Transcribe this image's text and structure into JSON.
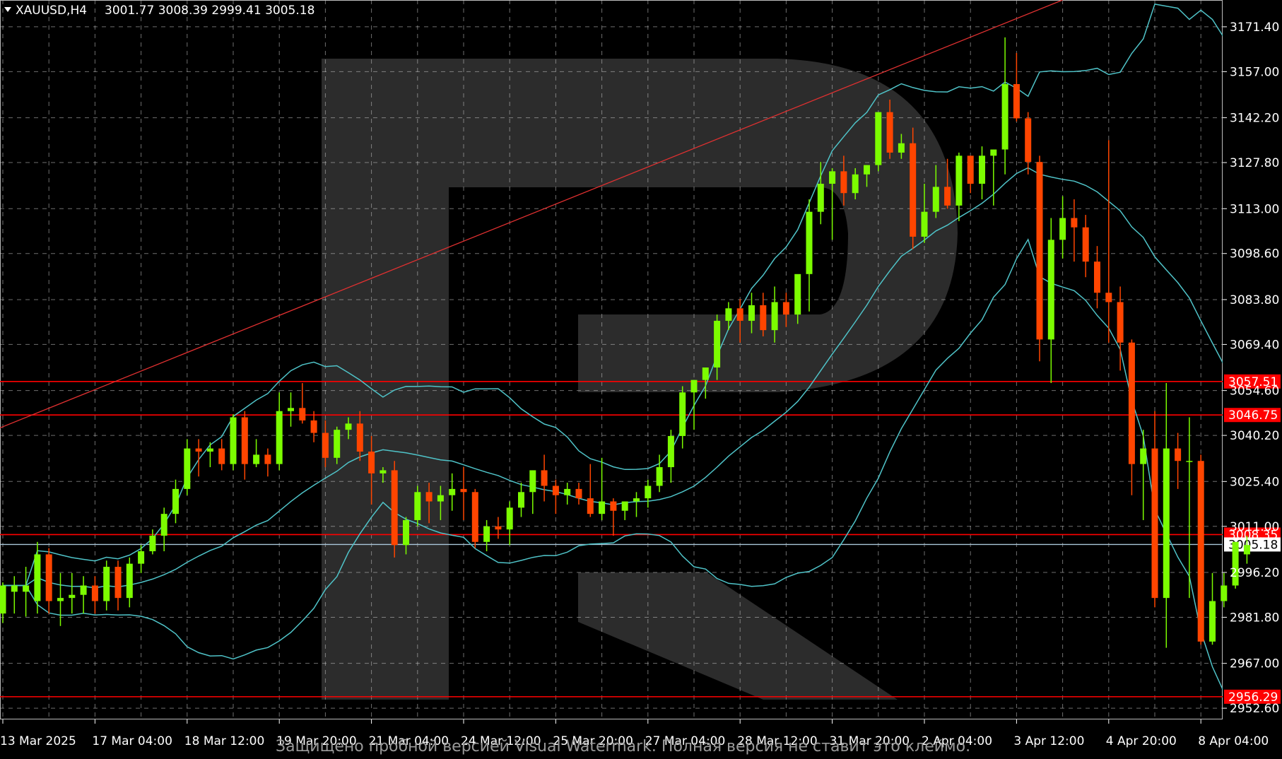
{
  "header": {
    "symbol": "XAUUSD,H4",
    "ohlc": "3001.77 3008.39 2999.41 3005.18"
  },
  "watermark_text": "Защищено пробной версией Visual Watermark. Полная версия не ставит это клеймо.",
  "logo": "R",
  "colors": {
    "background": "#000000",
    "grid": "#c8c8c8",
    "bull": "#7cfc00",
    "bear": "#ff4500",
    "bands": "#4fc3c8",
    "levels": "#ff0000",
    "trendline": "#e03030",
    "price_line": "#a9c6d9"
  },
  "chart_data": {
    "type": "candlestick",
    "timeframe": "H4",
    "ylim": [
      2949,
      3180
    ],
    "y_ticks": [
      3171.4,
      3157.0,
      3142.2,
      3127.8,
      3113.0,
      3098.6,
      3083.8,
      3069.4,
      3054.6,
      3040.2,
      3025.4,
      3011.0,
      2996.2,
      2981.8,
      2967.0,
      2952.6
    ],
    "x_labels": [
      "13 Mar 2025",
      "17 Mar 04:00",
      "18 Mar 12:00",
      "19 Mar 20:00",
      "21 Mar 04:00",
      "24 Mar 12:00",
      "25 Mar 20:00",
      "27 Mar 04:00",
      "28 Mar 12:00",
      "31 Mar 20:00",
      "2 Apr 04:00",
      "3 Apr 12:00",
      "4 Apr 20:00",
      "8 Apr 04:00"
    ],
    "x_label_index": [
      0,
      8,
      16,
      24,
      32,
      40,
      48,
      56,
      64,
      72,
      80,
      88,
      96,
      104
    ],
    "levels": [
      {
        "label": "3057.51",
        "value": 3057.51
      },
      {
        "label": "3046.75",
        "value": 3046.75
      },
      {
        "label": "3008.35",
        "value": 3008.35
      },
      {
        "label": "2956.29",
        "value": 2956.29
      }
    ],
    "current_price": {
      "label": "3005.18",
      "value": 3005.18
    },
    "trendline": [
      {
        "i": -1,
        "v": 3041.5
      },
      {
        "i": 92,
        "v": 3180
      }
    ],
    "candles": [
      {
        "o": 2983,
        "h": 2993,
        "l": 2980,
        "c": 2992
      },
      {
        "o": 2990,
        "h": 2995,
        "l": 2983,
        "c": 2992
      },
      {
        "o": 2990,
        "h": 2998,
        "l": 2982,
        "c": 2992
      },
      {
        "o": 2987,
        "h": 3006,
        "l": 2983,
        "c": 3002
      },
      {
        "o": 3002,
        "h": 3004,
        "l": 2983,
        "c": 2987
      },
      {
        "o": 2987,
        "h": 2996,
        "l": 2979,
        "c": 2988
      },
      {
        "o": 2988,
        "h": 2996,
        "l": 2983,
        "c": 2989
      },
      {
        "o": 2989,
        "h": 2995,
        "l": 2983,
        "c": 2992
      },
      {
        "o": 2992,
        "h": 2995,
        "l": 2983,
        "c": 2987
      },
      {
        "o": 2987,
        "h": 3000,
        "l": 2984,
        "c": 2998
      },
      {
        "o": 2998,
        "h": 3000,
        "l": 2984,
        "c": 2988
      },
      {
        "o": 2988,
        "h": 3001,
        "l": 2985,
        "c": 2999
      },
      {
        "o": 2999,
        "h": 3005,
        "l": 2996,
        "c": 3003
      },
      {
        "o": 3003,
        "h": 3010,
        "l": 3002,
        "c": 3008
      },
      {
        "o": 3008,
        "h": 3017,
        "l": 3003,
        "c": 3015
      },
      {
        "o": 3015,
        "h": 3026,
        "l": 3012,
        "c": 3023
      },
      {
        "o": 3023,
        "h": 3039,
        "l": 3021,
        "c": 3036
      },
      {
        "o": 3036,
        "h": 3039,
        "l": 3027,
        "c": 3035
      },
      {
        "o": 3035,
        "h": 3038,
        "l": 3030,
        "c": 3036
      },
      {
        "o": 3036,
        "h": 3039,
        "l": 3029,
        "c": 3031
      },
      {
        "o": 3031,
        "h": 3047,
        "l": 3029,
        "c": 3046
      },
      {
        "o": 3046,
        "h": 3048,
        "l": 3026,
        "c": 3031
      },
      {
        "o": 3031,
        "h": 3039,
        "l": 3030,
        "c": 3034
      },
      {
        "o": 3034,
        "h": 3036,
        "l": 3027,
        "c": 3031
      },
      {
        "o": 3031,
        "h": 3054,
        "l": 3029,
        "c": 3048
      },
      {
        "o": 3048,
        "h": 3054,
        "l": 3043,
        "c": 3049
      },
      {
        "o": 3049,
        "h": 3057,
        "l": 3044,
        "c": 3045
      },
      {
        "o": 3045,
        "h": 3048,
        "l": 3038,
        "c": 3041
      },
      {
        "o": 3041,
        "h": 3045,
        "l": 3030,
        "c": 3033
      },
      {
        "o": 3033,
        "h": 3043,
        "l": 3031,
        "c": 3042
      },
      {
        "o": 3042,
        "h": 3046,
        "l": 3039,
        "c": 3044
      },
      {
        "o": 3044,
        "h": 3048,
        "l": 3032,
        "c": 3035
      },
      {
        "o": 3035,
        "h": 3040,
        "l": 3018,
        "c": 3028
      },
      {
        "o": 3028,
        "h": 3030,
        "l": 3025,
        "c": 3029
      },
      {
        "o": 3029,
        "h": 3032,
        "l": 3001,
        "c": 3005
      },
      {
        "o": 3005,
        "h": 3014,
        "l": 3002,
        "c": 3013
      },
      {
        "o": 3013,
        "h": 3024,
        "l": 3011,
        "c": 3022
      },
      {
        "o": 3022,
        "h": 3025,
        "l": 3012,
        "c": 3019
      },
      {
        "o": 3019,
        "h": 3024,
        "l": 3013,
        "c": 3021
      },
      {
        "o": 3021,
        "h": 3028,
        "l": 3016,
        "c": 3023
      },
      {
        "o": 3023,
        "h": 3030,
        "l": 3013,
        "c": 3022
      },
      {
        "o": 3022,
        "h": 3023,
        "l": 3004,
        "c": 3006
      },
      {
        "o": 3006,
        "h": 3013,
        "l": 3003,
        "c": 3011
      },
      {
        "o": 3011,
        "h": 3014,
        "l": 3007,
        "c": 3010
      },
      {
        "o": 3010,
        "h": 3019,
        "l": 3005,
        "c": 3017
      },
      {
        "o": 3017,
        "h": 3025,
        "l": 3014,
        "c": 3022
      },
      {
        "o": 3022,
        "h": 3029,
        "l": 3015,
        "c": 3029
      },
      {
        "o": 3029,
        "h": 3034,
        "l": 3019,
        "c": 3024
      },
      {
        "o": 3024,
        "h": 3026,
        "l": 3015,
        "c": 3021
      },
      {
        "o": 3021,
        "h": 3025,
        "l": 3018,
        "c": 3023
      },
      {
        "o": 3023,
        "h": 3025,
        "l": 3018,
        "c": 3020
      },
      {
        "o": 3020,
        "h": 3031,
        "l": 3014,
        "c": 3015
      },
      {
        "o": 3015,
        "h": 3033,
        "l": 3013,
        "c": 3019
      },
      {
        "o": 3019,
        "h": 3020,
        "l": 3008,
        "c": 3016
      },
      {
        "o": 3016,
        "h": 3018,
        "l": 3013,
        "c": 3019
      },
      {
        "o": 3019,
        "h": 3022,
        "l": 3014,
        "c": 3020
      },
      {
        "o": 3020,
        "h": 3026,
        "l": 3017,
        "c": 3024
      },
      {
        "o": 3024,
        "h": 3034,
        "l": 3022,
        "c": 3030
      },
      {
        "o": 3030,
        "h": 3042,
        "l": 3025,
        "c": 3040
      },
      {
        "o": 3040,
        "h": 3056,
        "l": 3036,
        "c": 3054
      },
      {
        "o": 3054,
        "h": 3058,
        "l": 3042,
        "c": 3058
      },
      {
        "o": 3058,
        "h": 3061,
        "l": 3052,
        "c": 3062
      },
      {
        "o": 3062,
        "h": 3079,
        "l": 3058,
        "c": 3077
      },
      {
        "o": 3077,
        "h": 3083,
        "l": 3074,
        "c": 3081
      },
      {
        "o": 3081,
        "h": 3084,
        "l": 3070,
        "c": 3077
      },
      {
        "o": 3077,
        "h": 3086,
        "l": 3073,
        "c": 3082
      },
      {
        "o": 3082,
        "h": 3086,
        "l": 3072,
        "c": 3074
      },
      {
        "o": 3074,
        "h": 3088,
        "l": 3070,
        "c": 3083
      },
      {
        "o": 3083,
        "h": 3086,
        "l": 3075,
        "c": 3079
      },
      {
        "o": 3079,
        "h": 3090,
        "l": 3076,
        "c": 3092
      },
      {
        "o": 3092,
        "h": 3116,
        "l": 3080,
        "c": 3112
      },
      {
        "o": 3112,
        "h": 3128,
        "l": 3108,
        "c": 3121
      },
      {
        "o": 3121,
        "h": 3126,
        "l": 3103,
        "c": 3125
      },
      {
        "o": 3125,
        "h": 3130,
        "l": 3114,
        "c": 3118
      },
      {
        "o": 3118,
        "h": 3126,
        "l": 3116,
        "c": 3124
      },
      {
        "o": 3124,
        "h": 3127,
        "l": 3120,
        "c": 3127
      },
      {
        "o": 3127,
        "h": 3144,
        "l": 3125,
        "c": 3144
      },
      {
        "o": 3144,
        "h": 3148,
        "l": 3129,
        "c": 3131
      },
      {
        "o": 3131,
        "h": 3137,
        "l": 3129,
        "c": 3134
      },
      {
        "o": 3134,
        "h": 3139,
        "l": 3100,
        "c": 3104
      },
      {
        "o": 3104,
        "h": 3121,
        "l": 3102,
        "c": 3112
      },
      {
        "o": 3112,
        "h": 3127,
        "l": 3110,
        "c": 3120
      },
      {
        "o": 3120,
        "h": 3129,
        "l": 3113,
        "c": 3114
      },
      {
        "o": 3114,
        "h": 3131,
        "l": 3109,
        "c": 3130
      },
      {
        "o": 3130,
        "h": 3130,
        "l": 3118,
        "c": 3121
      },
      {
        "o": 3121,
        "h": 3133,
        "l": 3116,
        "c": 3130
      },
      {
        "o": 3130,
        "h": 3132,
        "l": 3114,
        "c": 3132
      },
      {
        "o": 3132,
        "h": 3168,
        "l": 3124,
        "c": 3153
      },
      {
        "o": 3153,
        "h": 3163,
        "l": 3141,
        "c": 3142
      },
      {
        "o": 3142,
        "h": 3144,
        "l": 3124,
        "c": 3128
      },
      {
        "o": 3128,
        "h": 3130,
        "l": 3064,
        "c": 3071
      },
      {
        "o": 3071,
        "h": 3110,
        "l": 3057,
        "c": 3103
      },
      {
        "o": 3103,
        "h": 3117,
        "l": 3097,
        "c": 3110
      },
      {
        "o": 3110,
        "h": 3116,
        "l": 3096,
        "c": 3107
      },
      {
        "o": 3107,
        "h": 3111,
        "l": 3091,
        "c": 3096
      },
      {
        "o": 3096,
        "h": 3101,
        "l": 3081,
        "c": 3086
      },
      {
        "o": 3086,
        "h": 3135,
        "l": 3070,
        "c": 3083
      },
      {
        "o": 3083,
        "h": 3088,
        "l": 3061,
        "c": 3070
      },
      {
        "o": 3070,
        "h": 3071,
        "l": 3021,
        "c": 3031
      },
      {
        "o": 3031,
        "h": 3042,
        "l": 3013,
        "c": 3036
      },
      {
        "o": 3036,
        "h": 3048,
        "l": 2985,
        "c": 2988
      },
      {
        "o": 2988,
        "h": 3057,
        "l": 2972,
        "c": 3036
      },
      {
        "o": 3036,
        "h": 3041,
        "l": 3023,
        "c": 3032
      },
      {
        "o": 3032,
        "h": 3046,
        "l": 2988,
        "c": 3032
      },
      {
        "o": 3032,
        "h": 3034,
        "l": 2973,
        "c": 2974
      },
      {
        "o": 2974,
        "h": 2996,
        "l": 2973,
        "c": 2987
      },
      {
        "o": 2987,
        "h": 2996,
        "l": 2985,
        "c": 2992
      },
      {
        "o": 2992,
        "h": 3006,
        "l": 2991,
        "c": 3006
      },
      {
        "o": 3002,
        "h": 3008,
        "l": 2999,
        "c": 3005
      }
    ]
  }
}
